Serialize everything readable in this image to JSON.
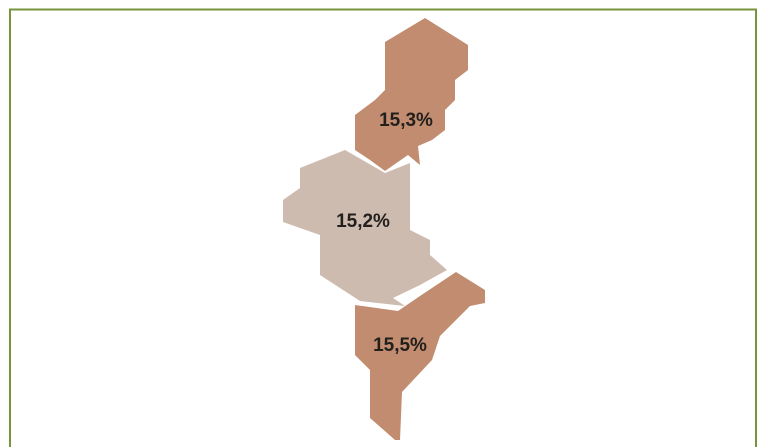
{
  "regions": [
    {
      "label": "15,3%",
      "color": "#c18c6f"
    },
    {
      "label": "15,2%",
      "color": "#cdbbaf"
    },
    {
      "label": "15,5%",
      "color": "#c18c6f"
    }
  ]
}
